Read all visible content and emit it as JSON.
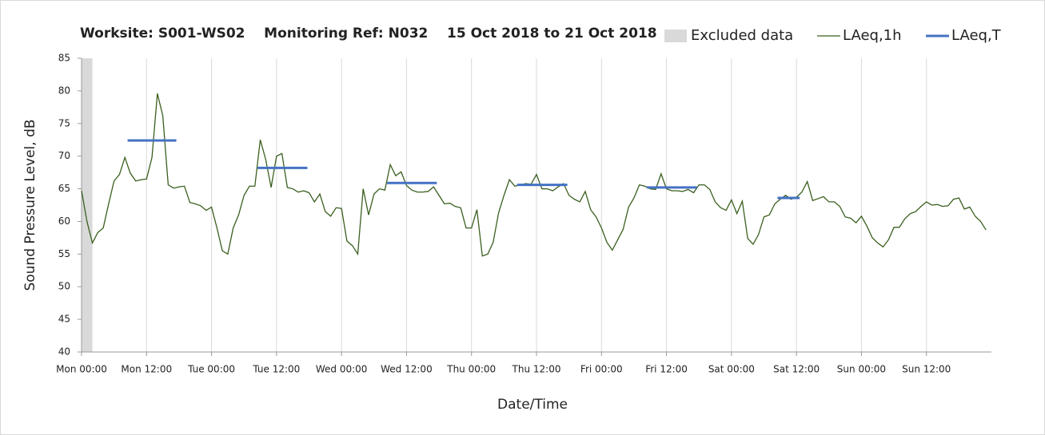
{
  "chart_data": {
    "type": "line",
    "title": "Worksite: S001-WS02    Monitoring Ref: N032    15 Oct 2018 to 21 Oct 2018",
    "xlabel": "Date/Time",
    "ylabel": "Sound Pressure Level, dB",
    "xlim": [
      0,
      168
    ],
    "xticks": [
      {
        "value": 0,
        "label": "Mon 00:00"
      },
      {
        "value": 12,
        "label": "Mon 12:00"
      },
      {
        "value": 24,
        "label": "Tue 00:00"
      },
      {
        "value": 36,
        "label": "Tue 12:00"
      },
      {
        "value": 48,
        "label": "Wed 00:00"
      },
      {
        "value": 60,
        "label": "Wed 12:00"
      },
      {
        "value": 72,
        "label": "Thu 00:00"
      },
      {
        "value": 84,
        "label": "Thu 12:00"
      },
      {
        "value": 96,
        "label": "Fri 00:00"
      },
      {
        "value": 108,
        "label": "Fri 12:00"
      },
      {
        "value": 120,
        "label": "Sat 00:00"
      },
      {
        "value": 132,
        "label": "Sat 12:00"
      },
      {
        "value": 144,
        "label": "Sun 00:00"
      },
      {
        "value": 156,
        "label": "Sun 12:00"
      }
    ],
    "ylim": [
      40,
      85
    ],
    "yticks": [
      40,
      45,
      50,
      55,
      60,
      65,
      70,
      75,
      80,
      85
    ],
    "grid": true,
    "legend": "top-right",
    "excluded": {
      "name": "Excluded data",
      "color": "#d9d9d9",
      "x_range": [
        0,
        2
      ]
    },
    "x": [
      0,
      1,
      2,
      3,
      4,
      5,
      6,
      7,
      8,
      9,
      10,
      11,
      12,
      13,
      14,
      15,
      16,
      17,
      18,
      19,
      20,
      21,
      22,
      23,
      24,
      25,
      26,
      27,
      28,
      29,
      30,
      31,
      32,
      33,
      34,
      35,
      36,
      37,
      38,
      39,
      40,
      41,
      42,
      43,
      44,
      45,
      46,
      47,
      48,
      49,
      50,
      51,
      52,
      53,
      54,
      55,
      56,
      57,
      58,
      59,
      60,
      61,
      62,
      63,
      64,
      65,
      66,
      67,
      68,
      69,
      70,
      71,
      72,
      73,
      74,
      75,
      76,
      77,
      78,
      79,
      80,
      81,
      82,
      83,
      84,
      85,
      86,
      87,
      88,
      89,
      90,
      91,
      92,
      93,
      94,
      95,
      96,
      97,
      98,
      99,
      100,
      101,
      102,
      103,
      104,
      105,
      106,
      107,
      108,
      109,
      110,
      111,
      112,
      113,
      114,
      115,
      116,
      117,
      118,
      119,
      120,
      121,
      122,
      123,
      124,
      125,
      126,
      127,
      128,
      129,
      130,
      131,
      132,
      133,
      134,
      135,
      136,
      137,
      138,
      139,
      140,
      141,
      142,
      143,
      144,
      145,
      146,
      147,
      148,
      149,
      150,
      151,
      152,
      153,
      154,
      155,
      156,
      157,
      158,
      159,
      160,
      161,
      162,
      163,
      164,
      165,
      166,
      167
    ],
    "series": [
      {
        "name": "LAeq,1h",
        "color": "#3a5f1e",
        "values": [
          64.7,
          60,
          56.7,
          58.3,
          59,
          62.7,
          66.2,
          67.2,
          69.8,
          67.4,
          66.2,
          66.4,
          66.5,
          69.8,
          79.6,
          76.2,
          65.6,
          65.1,
          65.3,
          65.4,
          62.9,
          62.7,
          62.4,
          61.7,
          62.2,
          59,
          55.5,
          55,
          59,
          61,
          64,
          65.4,
          65.4,
          72.5,
          69.5,
          65.2,
          70,
          70.4,
          65.2,
          65,
          64.5,
          64.7,
          64.4,
          63,
          64.2,
          61.5,
          60.8,
          62.1,
          62,
          57,
          56.3,
          55,
          65,
          61,
          64.2,
          65,
          64.8,
          68.7,
          67,
          67.6,
          65.5,
          64.8,
          64.5,
          64.5,
          64.6,
          65.3,
          64,
          62.7,
          62.8,
          62.3,
          62.1,
          59,
          59,
          61.8,
          54.7,
          55,
          56.8,
          61.3,
          64,
          66.4,
          65.4,
          65.6,
          65.8,
          65.7,
          67.2,
          65,
          65,
          64.7,
          65.3,
          65.8,
          64,
          63.4,
          63,
          64.6,
          61.8,
          60.7,
          59,
          56.8,
          55.6,
          57.2,
          58.8,
          62.2,
          63.6,
          65.6,
          65.4,
          65,
          64.9,
          67.3,
          65,
          64.7,
          64.7,
          64.6,
          64.9,
          64.4,
          65.6,
          65.6,
          64.9,
          63,
          62.1,
          61.7,
          63.3,
          61.2,
          63.1,
          57.4,
          56.5,
          58,
          60.7,
          61,
          62.7,
          63.4,
          64,
          63.4,
          63.7,
          64.5,
          66.1,
          63.2,
          63.5,
          63.8,
          63,
          63,
          62.3,
          60.7,
          60.5,
          59.8,
          60.8,
          59.3,
          57.5,
          56.7,
          56.1,
          57.2,
          59.1,
          59.1,
          60.4,
          61.2,
          61.5,
          62.3,
          63,
          62.5,
          62.6,
          62.3,
          62.4,
          63.4,
          63.6,
          61.9,
          62.2,
          60.8,
          60,
          58.7
        ]
      },
      {
        "name": "LAeq,T",
        "color": "#4472c4",
        "segments": [
          {
            "start": 8.5,
            "end": 17.5,
            "value": 72.4
          },
          {
            "start": 32.5,
            "end": 41.7,
            "value": 68.2
          },
          {
            "start": 56.4,
            "end": 65.6,
            "value": 65.9
          },
          {
            "start": 80.4,
            "end": 89.7,
            "value": 65.6
          },
          {
            "start": 104.4,
            "end": 113.6,
            "value": 65.2
          },
          {
            "start": 128.5,
            "end": 132.6,
            "value": 63.6
          }
        ]
      }
    ]
  }
}
